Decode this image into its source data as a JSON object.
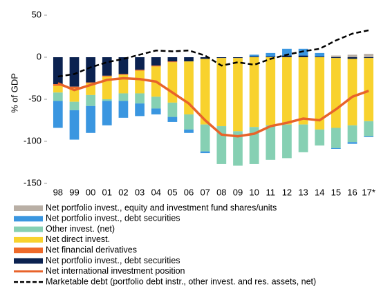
{
  "chart_data": {
    "type": "bar",
    "stacked": true,
    "y_label": "% of GDP",
    "categories": [
      "98",
      "99",
      "00",
      "01",
      "02",
      "03",
      "04",
      "05",
      "06",
      "07",
      "08",
      "09",
      "10",
      "11",
      "12",
      "13",
      "14",
      "15",
      "16",
      "17*"
    ],
    "ylim": [
      -150,
      50
    ],
    "yticks": [
      -150,
      -100,
      -50,
      0,
      50
    ],
    "series": [
      {
        "name": "Net portfolio invest., equity and investment fund shares/units",
        "color": "#b9afa5",
        "values": [
          0,
          0,
          0,
          0,
          0,
          0,
          0,
          0,
          0,
          0,
          0,
          0,
          0,
          0,
          0,
          0,
          0,
          2,
          3,
          4
        ]
      },
      {
        "name": "Net portfolio invest., debt securities",
        "color": "#3a96e0",
        "values": [
          -32,
          -35,
          -32,
          -29,
          -20,
          -15,
          -7,
          -6,
          -4,
          -2,
          0,
          0,
          2,
          4,
          8,
          8,
          4,
          -1,
          -2,
          -1
        ]
      },
      {
        "name": "Other invest. (net)",
        "color": "#86d0b3",
        "values": [
          -10,
          -10,
          -13,
          -2,
          -9,
          -12,
          -14,
          -17,
          -18,
          -32,
          -45,
          -41,
          -44,
          -41,
          -40,
          -33,
          -19,
          -24,
          -20,
          -18
        ]
      },
      {
        "name": "Net direct invest.",
        "color": "#f8d22e",
        "values": [
          -8,
          -16,
          -14,
          -27,
          -22,
          -27,
          -36,
          -48,
          -63,
          -78,
          -81,
          -87,
          -83,
          -81,
          -80,
          -80,
          -86,
          -83,
          -79,
          -75
        ]
      },
      {
        "name": "Net financial derivatives",
        "color": "#ee6a2a",
        "values": [
          -2,
          -2,
          -1,
          -1,
          -1,
          -1,
          -1,
          -1,
          0,
          0,
          0,
          0,
          0,
          0,
          0,
          0,
          0,
          0,
          0,
          0
        ]
      },
      {
        "name": "Net portfolio invest., debt securities",
        "color": "#0b2250",
        "values": [
          -32,
          -35,
          -30,
          -22,
          -20,
          -15,
          -10,
          -5,
          -5,
          -2,
          -1,
          -1,
          1,
          1,
          2,
          2,
          1,
          -1,
          -2,
          -1
        ]
      },
      {
        "name": "Net international investment position",
        "color": "#e8632a",
        "type": "line",
        "dashed": false,
        "values": [
          -31,
          -39,
          -33,
          -27,
          -25,
          -26,
          -29,
          -42,
          -55,
          -75,
          -92,
          -94,
          -91,
          -82,
          -78,
          -73,
          -75,
          -62,
          -47,
          -40
        ]
      },
      {
        "name": "Marketable debt (portfolio debt instr., other invest. and res. assets, net)",
        "color": "#000000",
        "type": "line",
        "dashed": true,
        "values": [
          -23,
          -20,
          -12,
          -6,
          -2,
          3,
          8,
          7,
          8,
          2,
          -10,
          -6,
          -9,
          -2,
          3,
          7,
          10,
          20,
          28,
          32
        ]
      }
    ]
  }
}
